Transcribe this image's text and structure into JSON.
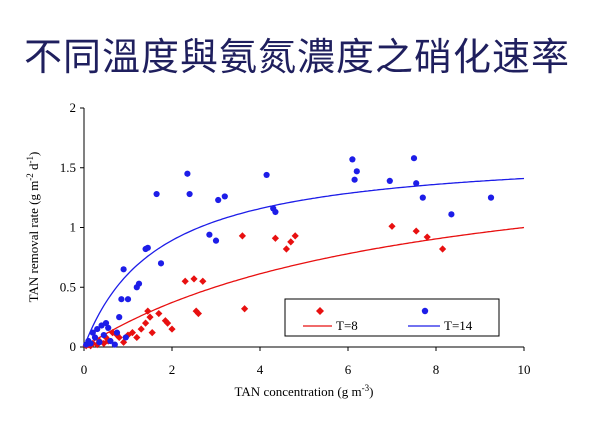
{
  "slide": {
    "title": "不同溫度與氨氮濃度之硝化速率"
  },
  "chart_data": {
    "type": "scatter",
    "xlabel": "TAN concentration (g m",
    "xlabel_sup": "-3",
    "xlabel_end": ")",
    "ylabel": "TAN removal rate (g m",
    "ylabel_sup1": "-2",
    "ylabel_mid": " d",
    "ylabel_sup2": "-1",
    "ylabel_end": ")",
    "xlim": [
      0,
      10
    ],
    "ylim": [
      0,
      2
    ],
    "xticks": [
      "0",
      "2",
      "4",
      "6",
      "8",
      "10"
    ],
    "yticks": [
      "0",
      "0.5",
      "1",
      "1.5",
      "2"
    ],
    "grid": false,
    "legend_position": "bottom-right",
    "series": [
      {
        "name": "T=8",
        "color": "#e81010",
        "marker": "diamond",
        "points": [
          [
            0.05,
            0.01
          ],
          [
            0.1,
            0.02
          ],
          [
            0.15,
            0.01
          ],
          [
            0.2,
            0.03
          ],
          [
            0.3,
            0.02
          ],
          [
            0.35,
            0.05
          ],
          [
            0.45,
            0.03
          ],
          [
            0.5,
            0.08
          ],
          [
            0.55,
            0.05
          ],
          [
            0.65,
            0.12
          ],
          [
            0.75,
            0.1
          ],
          [
            0.8,
            0.08
          ],
          [
            0.9,
            0.04
          ],
          [
            1.0,
            0.1
          ],
          [
            1.1,
            0.12
          ],
          [
            1.2,
            0.08
          ],
          [
            1.3,
            0.15
          ],
          [
            1.4,
            0.2
          ],
          [
            1.45,
            0.3
          ],
          [
            1.5,
            0.25
          ],
          [
            1.55,
            0.12
          ],
          [
            1.7,
            0.28
          ],
          [
            1.85,
            0.22
          ],
          [
            1.9,
            0.2
          ],
          [
            2.0,
            0.15
          ],
          [
            2.3,
            0.55
          ],
          [
            2.5,
            0.57
          ],
          [
            2.55,
            0.3
          ],
          [
            2.6,
            0.28
          ],
          [
            2.7,
            0.55
          ],
          [
            3.6,
            0.93
          ],
          [
            3.65,
            0.32
          ],
          [
            4.35,
            0.91
          ],
          [
            4.6,
            0.82
          ],
          [
            4.7,
            0.88
          ],
          [
            4.8,
            0.93
          ],
          [
            7.0,
            1.01
          ],
          [
            7.55,
            0.97
          ],
          [
            7.8,
            0.92
          ],
          [
            8.15,
            0.82
          ]
        ],
        "fit_curve": {
          "label": "T=8",
          "vmax": 1.73,
          "k": 7.3
        }
      },
      {
        "name": "T=14",
        "color": "#1d1de8",
        "marker": "circle",
        "points": [
          [
            0.05,
            0.02
          ],
          [
            0.1,
            0.05
          ],
          [
            0.15,
            0.03
          ],
          [
            0.2,
            0.12
          ],
          [
            0.25,
            0.08
          ],
          [
            0.3,
            0.15
          ],
          [
            0.35,
            0.04
          ],
          [
            0.4,
            0.18
          ],
          [
            0.45,
            0.1
          ],
          [
            0.5,
            0.2
          ],
          [
            0.55,
            0.16
          ],
          [
            0.6,
            0.05
          ],
          [
            0.7,
            0.02
          ],
          [
            0.75,
            0.12
          ],
          [
            0.8,
            0.25
          ],
          [
            0.85,
            0.4
          ],
          [
            0.9,
            0.65
          ],
          [
            0.95,
            0.08
          ],
          [
            1.0,
            0.4
          ],
          [
            1.2,
            0.5
          ],
          [
            1.25,
            0.53
          ],
          [
            1.4,
            0.82
          ],
          [
            1.45,
            0.83
          ],
          [
            1.65,
            1.28
          ],
          [
            1.75,
            0.7
          ],
          [
            2.35,
            1.45
          ],
          [
            2.4,
            1.28
          ],
          [
            2.85,
            0.94
          ],
          [
            3.0,
            0.89
          ],
          [
            3.05,
            1.23
          ],
          [
            3.2,
            1.26
          ],
          [
            4.15,
            1.44
          ],
          [
            4.3,
            1.16
          ],
          [
            4.35,
            1.13
          ],
          [
            6.1,
            1.57
          ],
          [
            6.15,
            1.4
          ],
          [
            6.2,
            1.47
          ],
          [
            6.95,
            1.39
          ],
          [
            7.5,
            1.58
          ],
          [
            7.55,
            1.37
          ],
          [
            7.7,
            1.25
          ],
          [
            8.35,
            1.11
          ],
          [
            9.25,
            1.25
          ]
        ],
        "fit_curve": {
          "label": "T=14",
          "vmax": 1.65,
          "k": 1.7
        }
      }
    ]
  }
}
